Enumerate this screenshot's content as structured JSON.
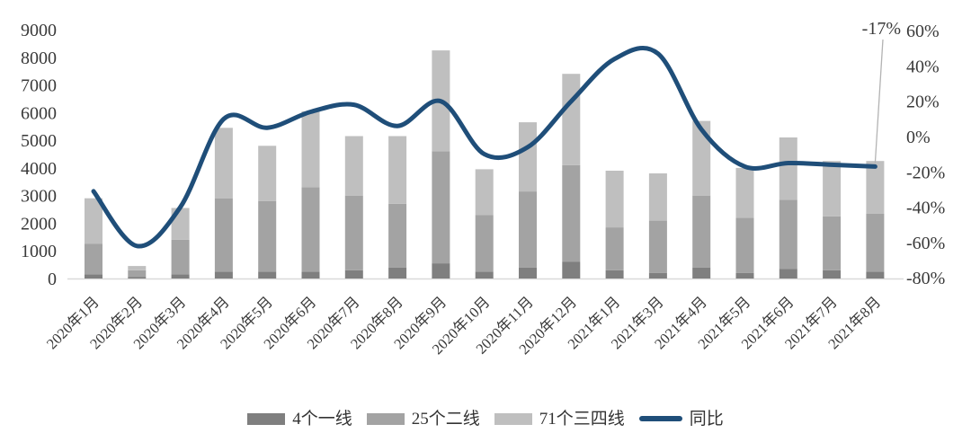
{
  "chart_data": {
    "type": "bar",
    "subtype": "stacked-bar-with-line",
    "title": "",
    "grid": false,
    "legend_position": "bottom",
    "categories": [
      "2020年1月",
      "2020年2月",
      "2020年3月",
      "2020年4月",
      "2020年5月",
      "2020年6月",
      "2020年7月",
      "2020年8月",
      "2020年9月",
      "2020年10月",
      "2020年11月",
      "2020年12月",
      "2021年1月",
      "2021年3月",
      "2021年4月",
      "2021年5月",
      "2021年6月",
      "2021年7月",
      "2021年8月"
    ],
    "bar_series": [
      {
        "name": "4个一线",
        "color": "#7f7f7f",
        "values": [
          150,
          50,
          150,
          250,
          250,
          250,
          300,
          400,
          550,
          250,
          400,
          600,
          300,
          200,
          400,
          200,
          350,
          300,
          250
        ]
      },
      {
        "name": "25个二线",
        "color": "#a3a3a3",
        "values": [
          1100,
          250,
          1250,
          2650,
          2550,
          3050,
          2700,
          2300,
          4050,
          2050,
          2750,
          3500,
          1550,
          1900,
          2600,
          2000,
          2500,
          1950,
          2100
        ]
      },
      {
        "name": "71个三四线",
        "color": "#bfbfbf",
        "values": [
          1650,
          150,
          1150,
          2550,
          2000,
          2750,
          2150,
          2450,
          3650,
          1650,
          2500,
          3300,
          2050,
          1700,
          2700,
          1800,
          2250,
          2000,
          1900
        ]
      }
    ],
    "line_series": {
      "name": "同比",
      "color": "#1f4e79",
      "axis": "right",
      "unit": "%",
      "values": [
        -31,
        -62,
        -40,
        10,
        5,
        14,
        18,
        6,
        20,
        -10,
        -6,
        20,
        44,
        47,
        4,
        -17,
        -15,
        -16,
        -17
      ]
    },
    "left_axis": {
      "min": 0,
      "max": 9000,
      "step": 1000,
      "tick_labels": [
        "0",
        "1000",
        "2000",
        "3000",
        "4000",
        "5000",
        "6000",
        "7000",
        "8000",
        "9000"
      ]
    },
    "right_axis": {
      "min": -80,
      "max": 60,
      "step": 20,
      "tick_labels": [
        "-80%",
        "-60%",
        "-40%",
        "-20%",
        "0%",
        "20%",
        "40%",
        "60%"
      ]
    },
    "annotation": {
      "text": "-17%",
      "target_category": "2021年8月",
      "target_value": -17
    },
    "colors": {
      "axis_line": "#d9d9d9",
      "leader_line": "#b3b3b3",
      "text": "#3a3a3a"
    }
  }
}
